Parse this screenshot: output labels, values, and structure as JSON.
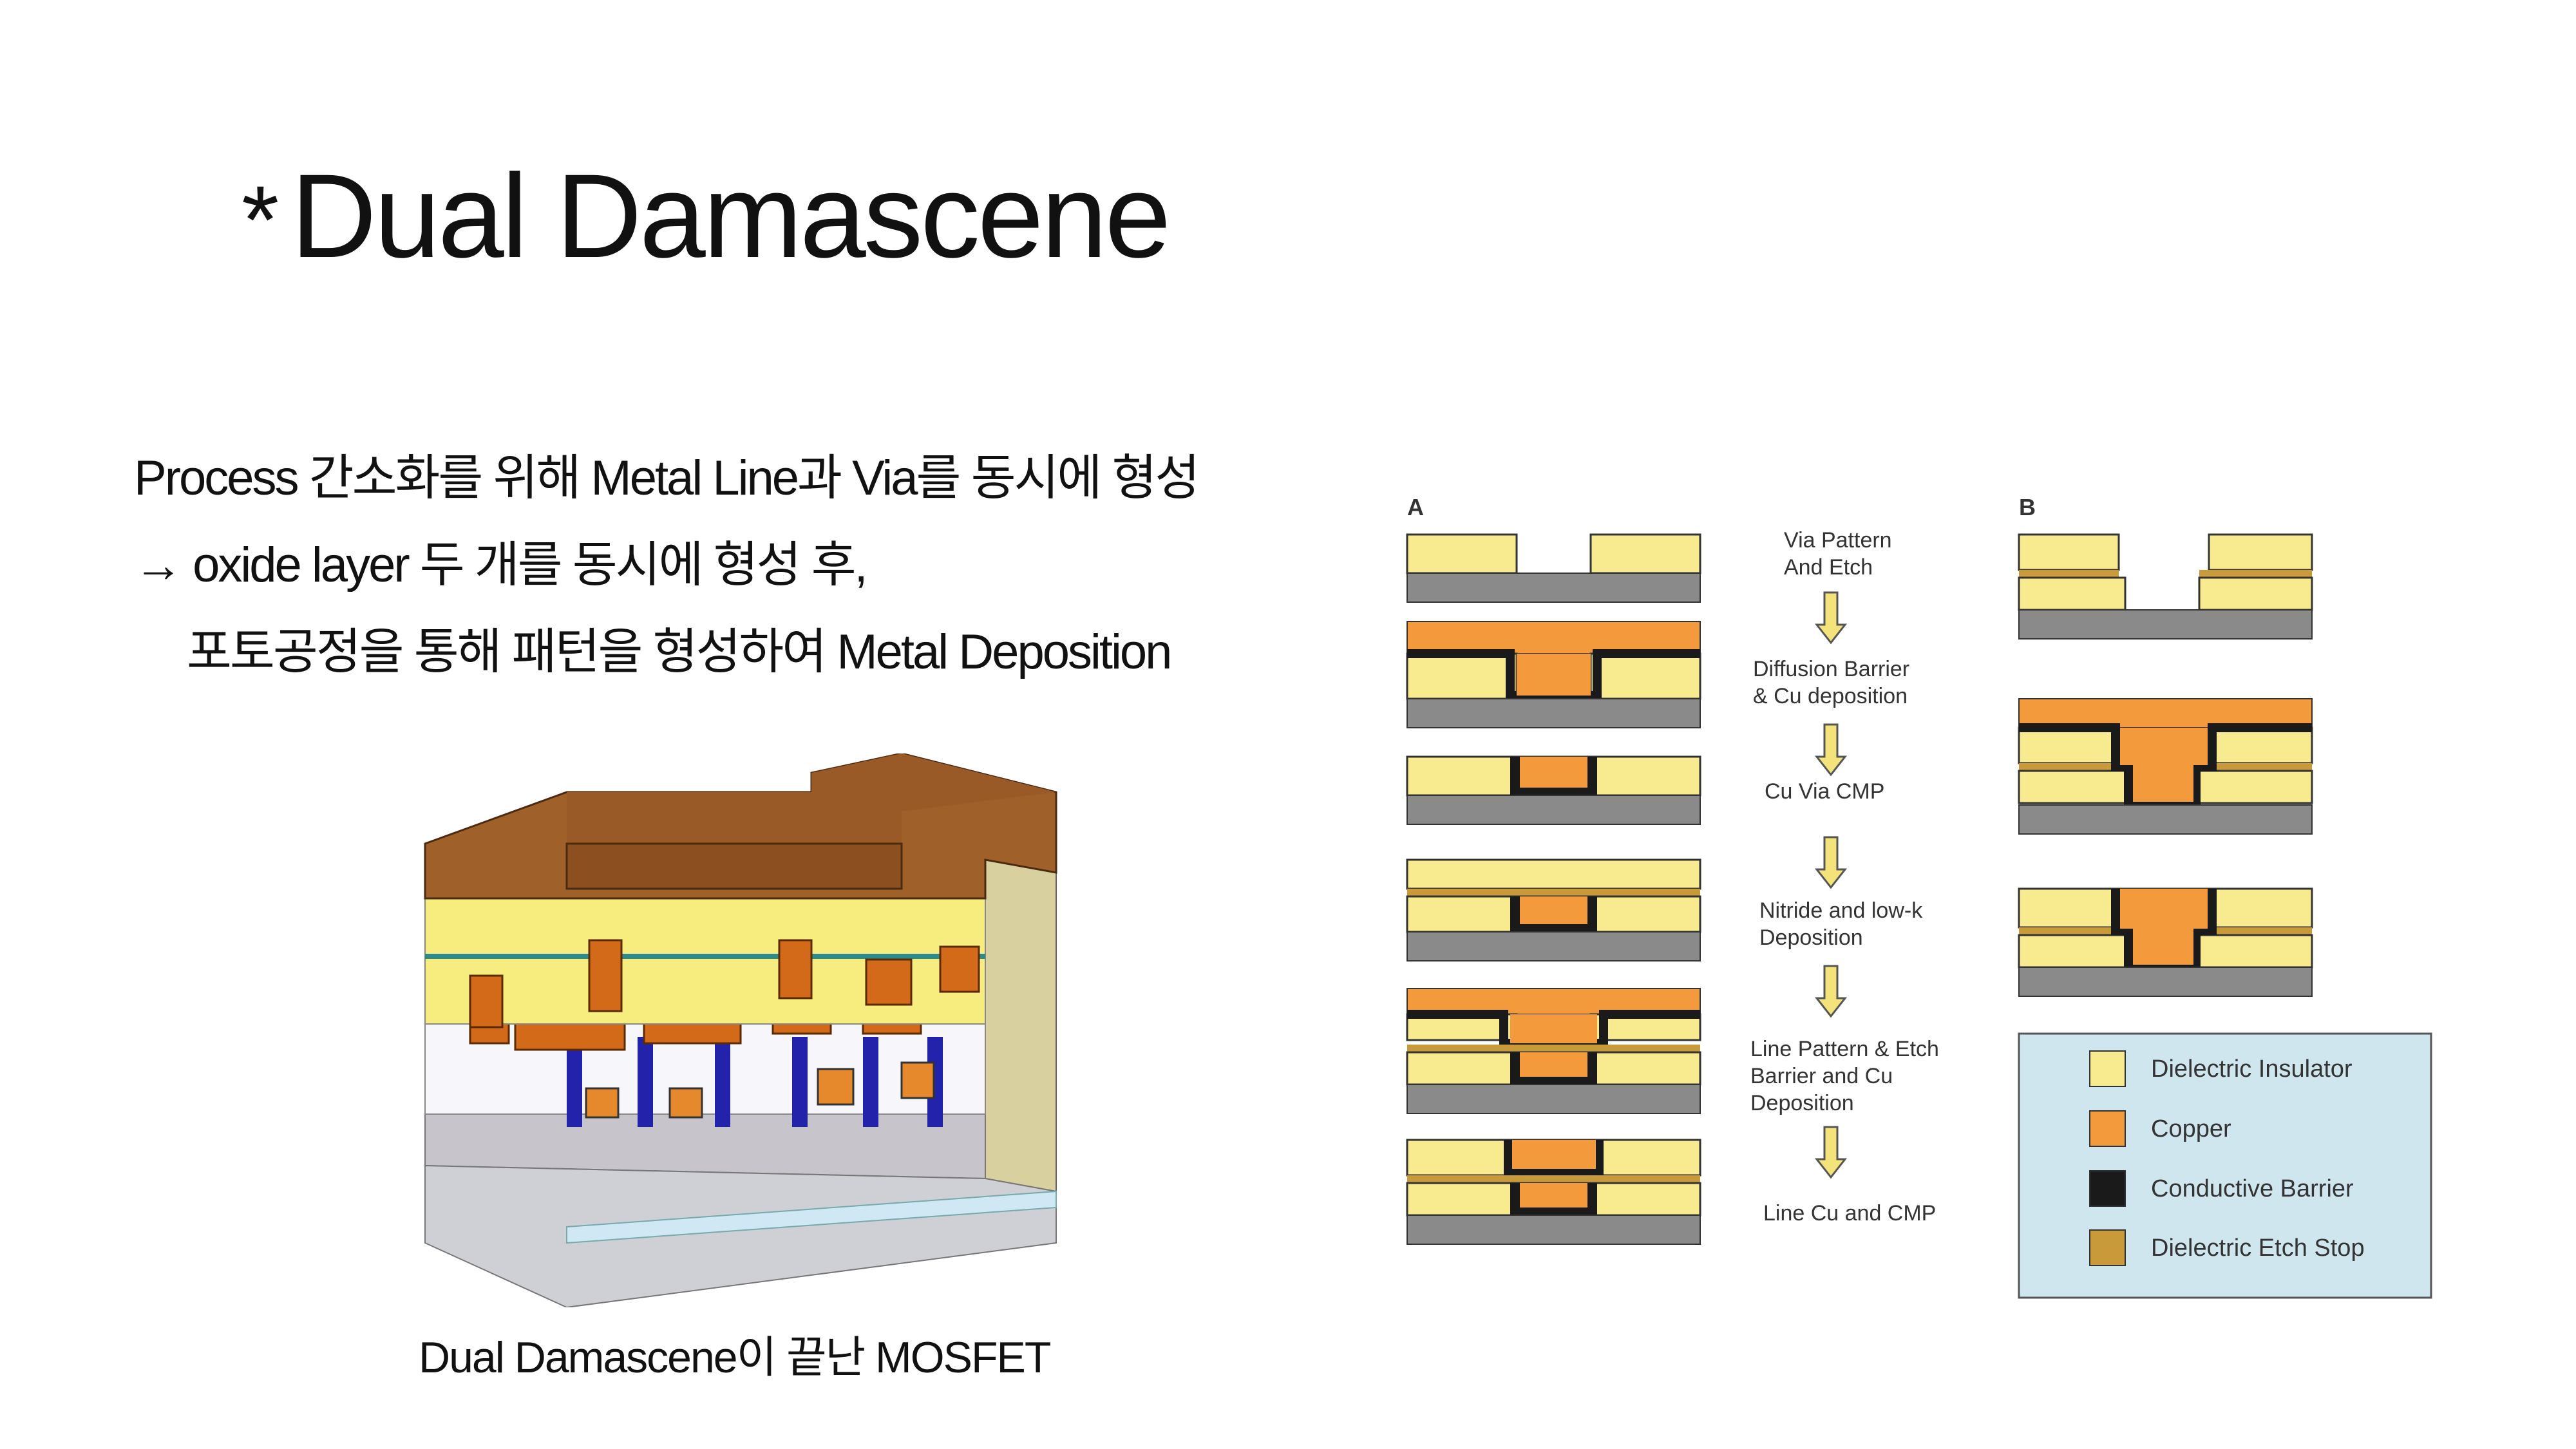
{
  "slide": {
    "title_marker": "*",
    "title": "Dual Damascene",
    "lines": [
      "Process 간소화를 위해 Metal Line과 Via를 동시에 형성",
      "→ oxide layer 두 개를 동시에 형성 후,",
      "포토공정을 통해 패턴을 형성하여 Metal Deposition"
    ],
    "left_figure_caption": "Dual Damascene이 끝난 MOSFET"
  },
  "process_figure": {
    "column_a_label": "A",
    "column_b_label": "B",
    "steps": [
      [
        "Via Pattern",
        "And Etch"
      ],
      [
        "Diffusion Barrier",
        "& Cu deposition"
      ],
      [
        "Cu Via CMP"
      ],
      [
        "Nitride and low-k",
        "Deposition"
      ],
      [
        "Line Pattern & Etch",
        "Barrier and Cu",
        "Deposition"
      ],
      [
        "Line Cu and CMP"
      ]
    ],
    "legend": [
      {
        "label": "Dielectric Insulator",
        "color": "#f8ea8e"
      },
      {
        "label": "Copper",
        "color": "#f39a3c"
      },
      {
        "label": "Conductive Barrier",
        "color": "#1a1a1a"
      },
      {
        "label": "Dielectric Etch Stop",
        "color": "#c99a3a"
      }
    ],
    "legend_bg": "#cfe6ef"
  },
  "colors": {
    "dielectric": "#f8ea8e",
    "copper": "#f39a3c",
    "barrier": "#1a1a1a",
    "etch_stop": "#c99a3a",
    "substrate": "#8a8a8a",
    "arrow": "#f4e27a",
    "metal_top": "#a0602a"
  }
}
